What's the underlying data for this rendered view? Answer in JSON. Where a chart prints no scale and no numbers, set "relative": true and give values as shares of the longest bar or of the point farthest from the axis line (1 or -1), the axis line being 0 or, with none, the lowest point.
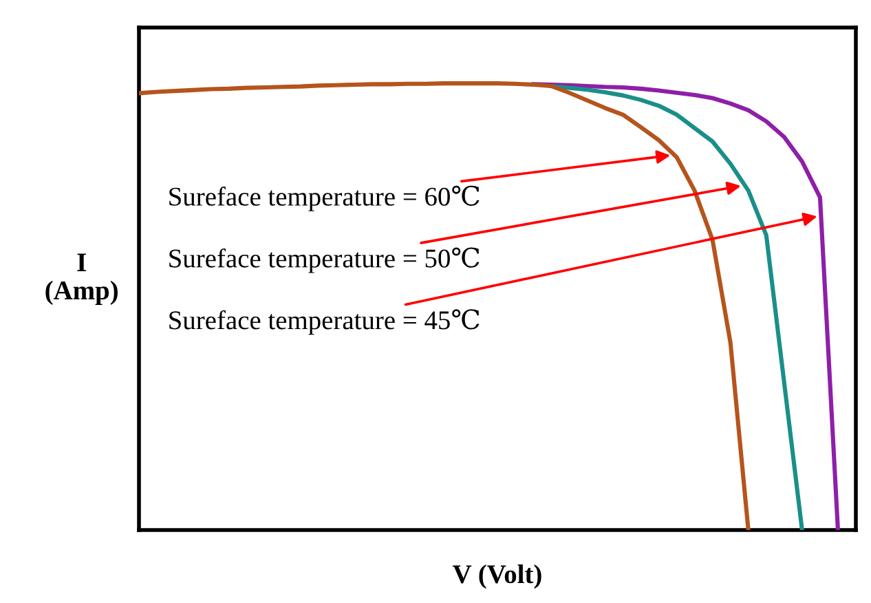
{
  "chart_data": {
    "type": "line",
    "relative": true,
    "xlabel": "V (Volt)",
    "ylabel": "I\n(Amp)",
    "tick_labels": false,
    "legend": false,
    "marker": "none",
    "line_style": "solid",
    "categories": [
      null,
      null,
      null,
      null,
      null,
      null,
      null,
      null,
      null,
      null,
      null,
      null,
      null,
      null,
      null,
      null,
      null,
      null,
      null,
      null,
      null,
      null,
      null,
      null,
      null,
      null,
      null,
      null,
      null,
      null,
      null,
      null,
      null,
      null,
      null,
      null,
      null,
      null,
      null,
      null,
      null
    ],
    "series": [
      {
        "color": "#b5541c",
        "values": [
          0.978,
          0.981,
          0.983,
          0.985,
          0.987,
          0.988,
          0.99,
          0.991,
          0.992,
          0.993,
          0.995,
          0.996,
          0.997,
          0.998,
          0.998,
          0.999,
          0.999,
          1.0,
          1.0,
          1.0,
          1.0,
          0.999,
          0.997,
          0.994,
          0.979,
          0.962,
          0.945,
          0.93,
          0.902,
          0.873,
          0.835,
          0.76,
          0.65,
          0.42,
          0,
          null,
          null,
          null,
          null,
          null,
          null
        ]
      },
      {
        "color": "#1a8f8a",
        "values": [
          null,
          null,
          null,
          null,
          null,
          null,
          null,
          null,
          null,
          null,
          null,
          null,
          null,
          null,
          null,
          null,
          null,
          null,
          null,
          null,
          null,
          null,
          null,
          0.994,
          0.99,
          0.986,
          0.98,
          0.973,
          0.963,
          0.95,
          0.93,
          0.9,
          0.87,
          0.82,
          0.76,
          0.66,
          0.33,
          0,
          null,
          null,
          null
        ]
      },
      {
        "color": "#8e1fa8",
        "values": [
          null,
          null,
          null,
          null,
          null,
          null,
          null,
          null,
          null,
          null,
          null,
          null,
          null,
          null,
          null,
          null,
          null,
          null,
          null,
          null,
          null,
          null,
          0.998,
          0.997,
          0.996,
          0.994,
          0.992,
          0.991,
          0.988,
          0.984,
          0.979,
          0.974,
          0.967,
          0.955,
          0.94,
          0.915,
          0.88,
          0.825,
          0.745,
          0,
          null
        ]
      }
    ],
    "annotations": [
      "Sureface temperature = 60℃",
      "Sureface temperature = 50℃",
      "Sureface temperature = 45℃"
    ]
  }
}
